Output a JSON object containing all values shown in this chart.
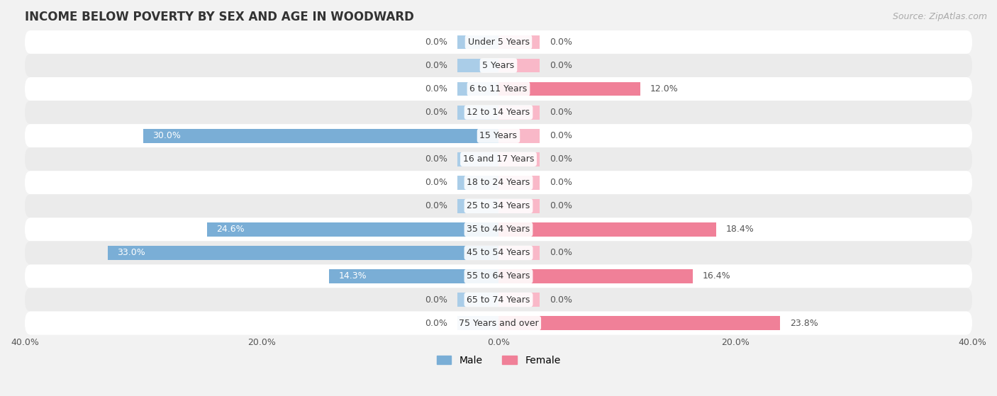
{
  "title": "INCOME BELOW POVERTY BY SEX AND AGE IN WOODWARD",
  "source": "Source: ZipAtlas.com",
  "categories": [
    "Under 5 Years",
    "5 Years",
    "6 to 11 Years",
    "12 to 14 Years",
    "15 Years",
    "16 and 17 Years",
    "18 to 24 Years",
    "25 to 34 Years",
    "35 to 44 Years",
    "45 to 54 Years",
    "55 to 64 Years",
    "65 to 74 Years",
    "75 Years and over"
  ],
  "male": [
    0.0,
    0.0,
    0.0,
    0.0,
    30.0,
    0.0,
    0.0,
    0.0,
    24.6,
    33.0,
    14.3,
    0.0,
    0.0
  ],
  "female": [
    0.0,
    0.0,
    12.0,
    0.0,
    0.0,
    0.0,
    0.0,
    0.0,
    18.4,
    0.0,
    16.4,
    0.0,
    23.8
  ],
  "male_color": "#7aaed6",
  "female_color": "#f08098",
  "male_color_light": "#aacde8",
  "female_color_light": "#f9b8c8",
  "male_label": "Male",
  "female_label": "Female",
  "xlim": 40.0,
  "stub_size": 3.5,
  "bg_color": "#f2f2f2",
  "row_color_white": "#ffffff",
  "row_color_gray": "#ebebeb",
  "title_fontsize": 12,
  "label_fontsize": 9,
  "tick_fontsize": 9,
  "source_fontsize": 9,
  "bar_height": 0.6
}
